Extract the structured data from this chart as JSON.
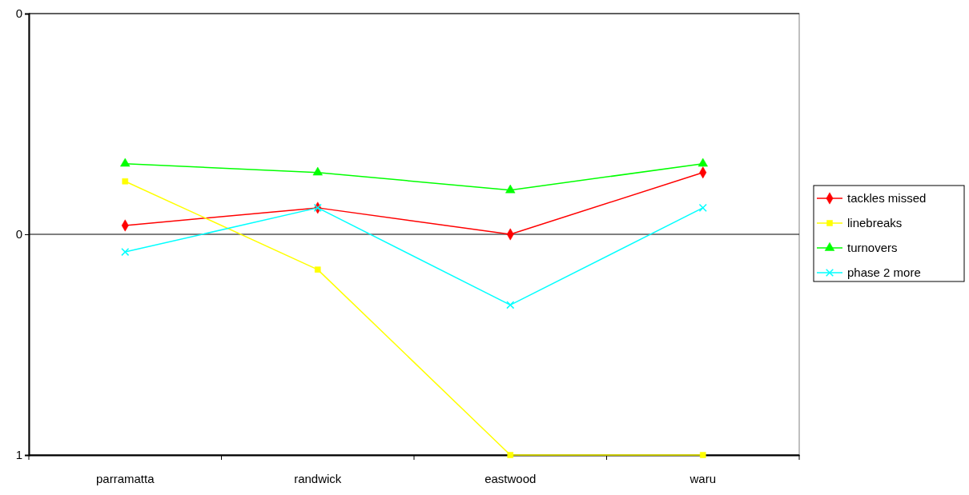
{
  "chart_data": {
    "type": "line",
    "categories": [
      "parramatta",
      "randwick",
      "eastwood",
      "waru"
    ],
    "series": [
      {
        "name": "tackles missed",
        "color": "#ff0000",
        "marker": "diamond",
        "values": [
          0.24,
          0.22,
          0.25,
          0.18
        ]
      },
      {
        "name": "linebreaks",
        "color": "#ffff00",
        "marker": "square",
        "values": [
          0.19,
          0.29,
          0.5,
          0.5
        ]
      },
      {
        "name": "turnovers",
        "color": "#00ff00",
        "marker": "triangle",
        "values": [
          0.17,
          0.18,
          0.2,
          0.17
        ]
      },
      {
        "name": "phase 2 more",
        "color": "#00ffff",
        "marker": "cross",
        "values": [
          0.27,
          0.22,
          0.33,
          0.22
        ]
      }
    ],
    "ylim": [
      0.5,
      0
    ],
    "yticks": [
      {
        "value": 0,
        "label": "0"
      },
      {
        "value": 0.25,
        "label": "0"
      },
      {
        "value": 0.5,
        "label": "1"
      }
    ],
    "grid": "y",
    "legend": "right",
    "line_style": "solid"
  }
}
